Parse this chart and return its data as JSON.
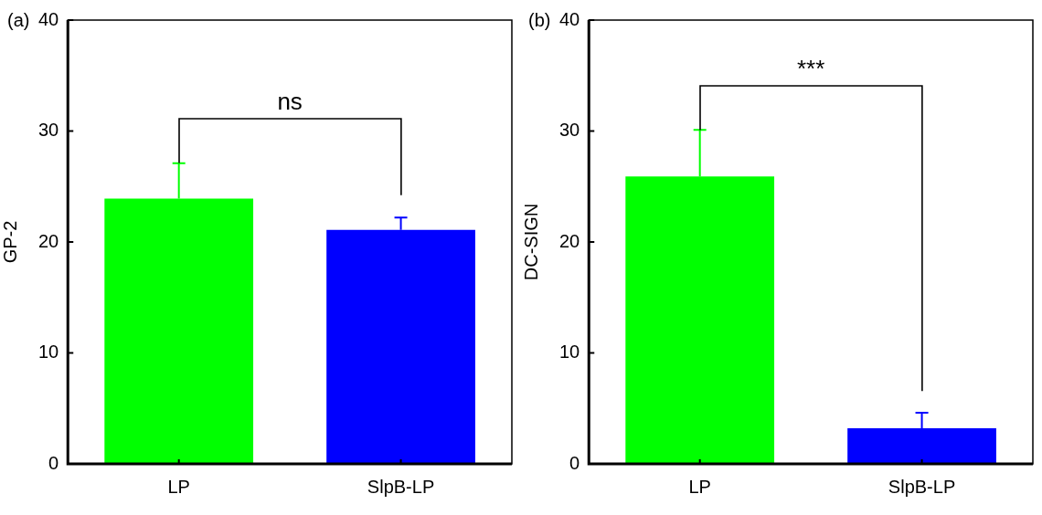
{
  "chart_data": [
    {
      "type": "bar",
      "title": "(a)",
      "ylabel": "GP-2",
      "categories": [
        "LP",
        "SlpB-LP"
      ],
      "colors": [
        "#00ff00",
        "#0000ff"
      ],
      "values": [
        23.9,
        21.1
      ],
      "errors": [
        [
          23.9,
          27.1
        ],
        [
          21.1,
          22.2
        ]
      ],
      "ylim": [
        0,
        40
      ],
      "yticks": [
        0,
        10,
        20,
        30,
        40
      ],
      "grid": false,
      "legend": false,
      "annotations": [
        "ns"
      ]
    },
    {
      "type": "bar",
      "title": "(b)",
      "ylabel": "DC-SIGN",
      "categories": [
        "LP",
        "SlpB-LP"
      ],
      "colors": [
        "#00ff00",
        "#0000ff"
      ],
      "values": [
        25.9,
        3.2
      ],
      "errors": [
        [
          25.9,
          30.1
        ],
        [
          3.2,
          4.6
        ]
      ],
      "ylim": [
        0,
        40
      ],
      "yticks": [
        0,
        10,
        20,
        30,
        40
      ],
      "grid": false,
      "legend": false,
      "annotations": [
        "***"
      ]
    }
  ]
}
